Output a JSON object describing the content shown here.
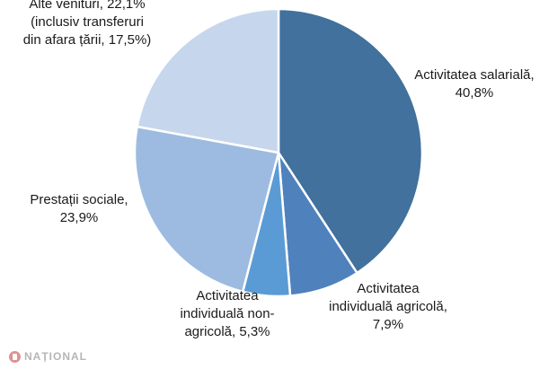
{
  "chart_data": {
    "type": "pie",
    "title": "",
    "start_angle_deg": 0,
    "direction": "clockwise",
    "slices": [
      {
        "label_lines": [
          "Activitatea salarială,",
          "40,8%"
        ],
        "value": 40.8,
        "color": "#41719c"
      },
      {
        "label_lines": [
          "Activitatea",
          "individuală agricolă,",
          "7,9%"
        ],
        "value": 7.9,
        "color": "#4f81bd"
      },
      {
        "label_lines": [
          "Activitatea",
          "individuală non-",
          "agricolă, 5,3%"
        ],
        "value": 5.3,
        "color": "#5b9bd5"
      },
      {
        "label_lines": [
          "Prestații sociale,",
          "23,9%"
        ],
        "value": 23.9,
        "color": "#9dbbe0"
      },
      {
        "label_lines": [
          "Alte venituri, 22,1%",
          "(inclusiv transferuri",
          "din afara țării, 17,5%)"
        ],
        "value": 22.1,
        "color": "#c6d6ec"
      }
    ]
  },
  "watermark": {
    "text": "NAȚIONAL"
  }
}
